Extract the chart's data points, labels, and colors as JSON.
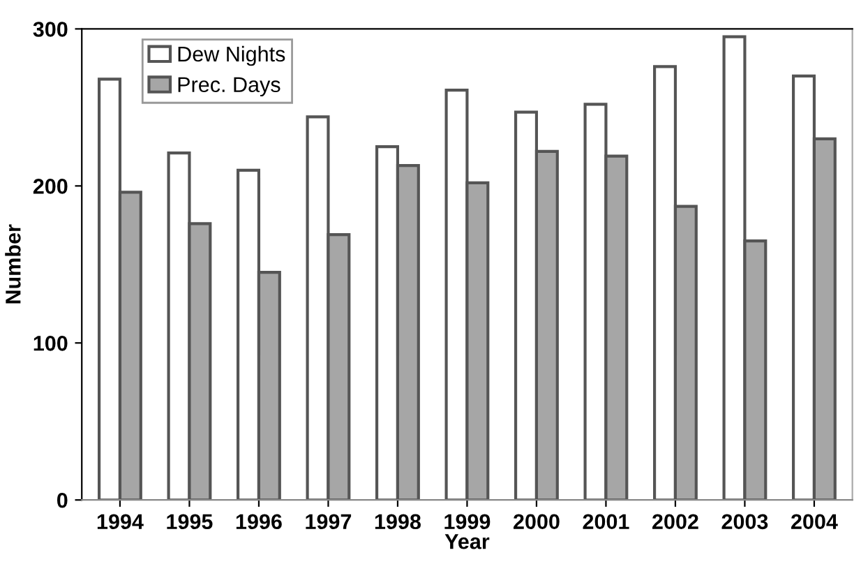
{
  "chart_data": {
    "type": "bar",
    "xlabel": "Year",
    "ylabel": "Number",
    "categories": [
      "1994",
      "1995",
      "1996",
      "1997",
      "1998",
      "1999",
      "2000",
      "2001",
      "2002",
      "2003",
      "2004"
    ],
    "series": [
      {
        "name": "Dew Nights",
        "color": "#ffffff",
        "values": [
          268,
          221,
          210,
          244,
          225,
          261,
          247,
          252,
          276,
          295,
          270
        ]
      },
      {
        "name": "Prec. Days",
        "color": "#a6a6a6",
        "values": [
          196,
          176,
          145,
          169,
          213,
          202,
          222,
          219,
          187,
          165,
          230
        ]
      }
    ],
    "ylim": [
      0,
      300
    ],
    "yticks": [
      0,
      100,
      200,
      300
    ],
    "grid": false,
    "legend": "top left"
  }
}
